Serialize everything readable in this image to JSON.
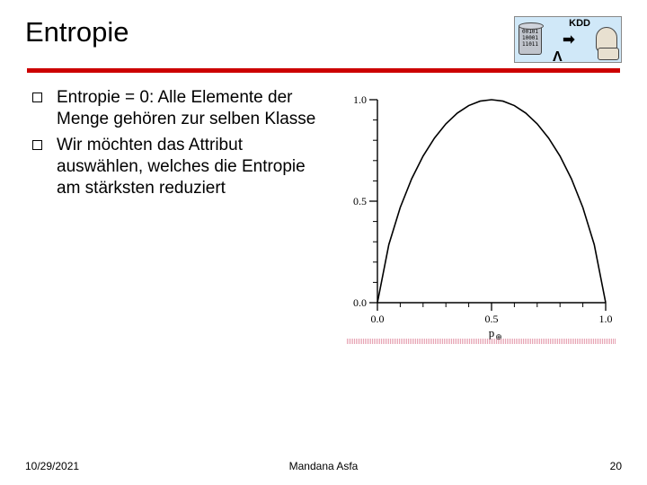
{
  "title": "Entropie",
  "kdd": {
    "label": "KDD",
    "binary": "00101\n10001\n11011",
    "lambda": "Λ"
  },
  "bullets": [
    "Entropie = 0: Alle Elemente der Menge gehören zur selben Klasse",
    " Wir möchten das Attribut auswählen, welches die Entropie am stärksten reduziert"
  ],
  "chart": {
    "type": "line",
    "xlim": [
      0.0,
      1.0
    ],
    "ylim": [
      0.0,
      1.0
    ],
    "xticks": [
      0.0,
      0.5,
      1.0
    ],
    "yticks": [
      0.0,
      0.5,
      1.0
    ],
    "xtick_labels": [
      "0.0",
      "0.5",
      "1.0"
    ],
    "ytick_labels": [
      "0.0",
      "0.5",
      "1.0"
    ],
    "xlabel": "p⊕",
    "curve_points": [
      [
        0.0,
        0.0
      ],
      [
        0.05,
        0.286
      ],
      [
        0.1,
        0.469
      ],
      [
        0.15,
        0.61
      ],
      [
        0.2,
        0.722
      ],
      [
        0.25,
        0.811
      ],
      [
        0.3,
        0.881
      ],
      [
        0.35,
        0.934
      ],
      [
        0.4,
        0.971
      ],
      [
        0.45,
        0.993
      ],
      [
        0.5,
        1.0
      ],
      [
        0.55,
        0.993
      ],
      [
        0.6,
        0.971
      ],
      [
        0.65,
        0.934
      ],
      [
        0.7,
        0.881
      ],
      [
        0.75,
        0.811
      ],
      [
        0.8,
        0.722
      ],
      [
        0.85,
        0.61
      ],
      [
        0.9,
        0.469
      ],
      [
        0.95,
        0.286
      ],
      [
        1.0,
        0.0
      ]
    ],
    "line_color": "#000000",
    "line_width": 1.6,
    "axis_color": "#000000",
    "background_color": "#ffffff",
    "font_size_ticks": 12,
    "font_size_xlabel": 13
  },
  "footer": {
    "date": "10/29/2021",
    "author": "Mandana Asfa",
    "page": "20"
  },
  "colors": {
    "accent_bar": "#cc0000",
    "kdd_bg": "#d0e8f8"
  }
}
